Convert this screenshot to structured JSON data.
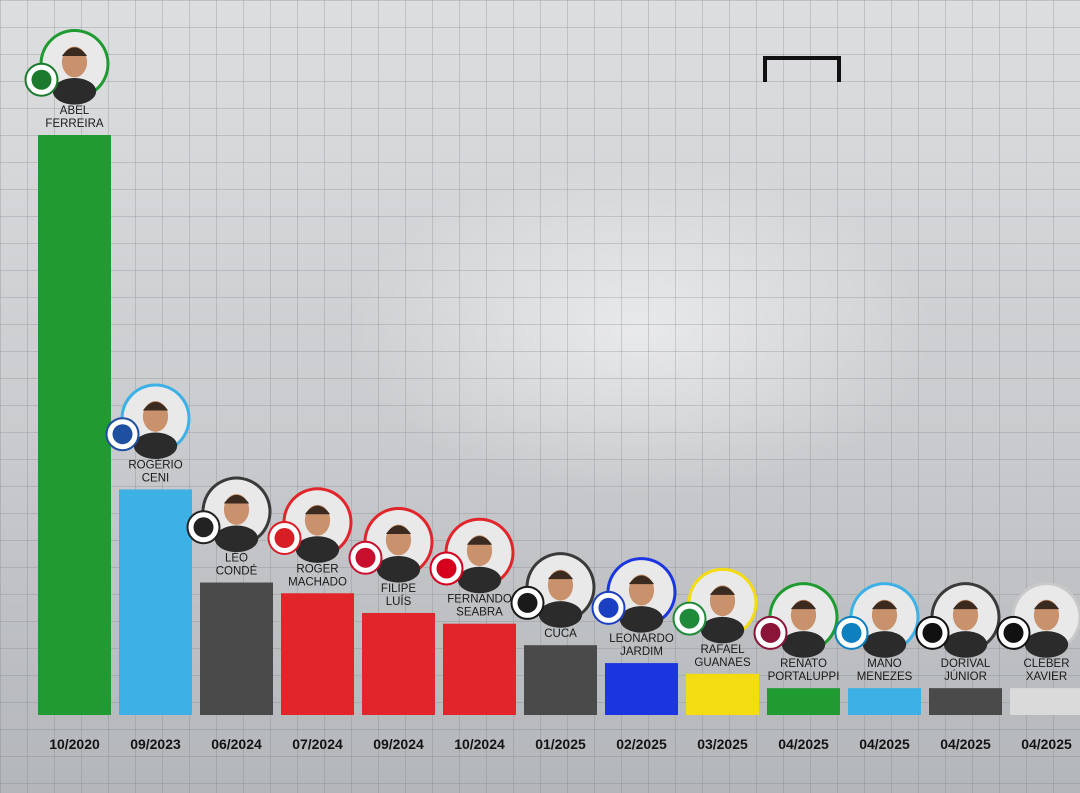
{
  "chart_data": {
    "type": "bar",
    "title": "",
    "xlabel": "",
    "ylabel": "",
    "categories": [
      "10/2020",
      "09/2023",
      "06/2024",
      "07/2024",
      "09/2024",
      "10/2024",
      "01/2025",
      "02/2025",
      "03/2025",
      "04/2025",
      "04/2025",
      "04/2025",
      "04/2025"
    ],
    "values": [
      1620,
      630,
      370,
      340,
      285,
      255,
      195,
      145,
      115,
      75,
      75,
      75,
      75
    ],
    "ylim": [
      0,
      1620
    ],
    "bars": [
      {
        "coach": [
          "ABEL",
          "FERREIRA"
        ],
        "date": "10/2020",
        "color": "#1f9b31",
        "ring": "#1f9b31",
        "crest": "palmeiras-crest-icon",
        "crest_color": "#1b7a2c"
      },
      {
        "coach": [
          "ROGÉRIO",
          "CENI"
        ],
        "date": "09/2023",
        "color": "#3db1e6",
        "ring": "#3db1e6",
        "crest": "bahia-crest-icon",
        "crest_color": "#1f4fa0"
      },
      {
        "coach": [
          "LÉO",
          "CONDÉ"
        ],
        "date": "06/2024",
        "color": "#4a4a4a",
        "ring": "#3a3a3a",
        "crest": "ceara-crest-icon",
        "crest_color": "#222222"
      },
      {
        "coach": [
          "ROGER",
          "MACHADO"
        ],
        "date": "07/2024",
        "color": "#e2252a",
        "ring": "#e2252a",
        "crest": "internacional-crest-icon",
        "crest_color": "#d81e24"
      },
      {
        "coach": [
          "FILIPE",
          "LUÍS"
        ],
        "date": "09/2024",
        "color": "#e2252a",
        "ring": "#e2252a",
        "crest": "flamengo-crest-icon",
        "crest_color": "#c8102e"
      },
      {
        "coach": [
          "FERNANDO",
          "SEABRA"
        ],
        "date": "10/2024",
        "color": "#e2252a",
        "ring": "#e2252a",
        "crest": "red-bull-bragantino-crest-icon",
        "crest_color": "#d6001c"
      },
      {
        "coach": [
          "CUCA"
        ],
        "date": "01/2025",
        "color": "#4a4a4a",
        "ring": "#3a3a3a",
        "crest": "atletico-mineiro-crest-icon",
        "crest_color": "#1a1a1a"
      },
      {
        "coach": [
          "LEONARDO",
          "JARDIM"
        ],
        "date": "02/2025",
        "color": "#1b35e0",
        "ring": "#1b35e0",
        "crest": "cruzeiro-crest-icon",
        "crest_color": "#1a3fc2"
      },
      {
        "coach": [
          "RAFAEL",
          "GUANAES"
        ],
        "date": "03/2025",
        "color": "#f3dc12",
        "ring": "#f3dc12",
        "crest": "mirassol-crest-icon",
        "crest_color": "#1f8a3a"
      },
      {
        "coach": [
          "RENATO",
          "PORTALUPPI"
        ],
        "date": "04/2025",
        "color": "#1f9b31",
        "ring": "#1f9b31",
        "crest": "fluminense-crest-icon",
        "crest_color": "#8a1538"
      },
      {
        "coach": [
          "MANO",
          "MENEZES"
        ],
        "date": "04/2025",
        "color": "#3db1e6",
        "ring": "#3db1e6",
        "crest": "gremio-crest-icon",
        "crest_color": "#0d80bf"
      },
      {
        "coach": [
          "DORIVAL",
          "JÚNIOR"
        ],
        "date": "04/2025",
        "color": "#4a4a4a",
        "ring": "#3a3a3a",
        "crest": "corinthians-crest-icon",
        "crest_color": "#111111"
      },
      {
        "coach": [
          "CLEBER",
          "XAVIER"
        ],
        "date": "04/2025",
        "color": "#dadada",
        "ring": "#c9c9c9",
        "crest": "santos-crest-icon",
        "crest_color": "#111111"
      }
    ]
  },
  "decor": {
    "goal_icon": "goal-frame-icon",
    "label_color": "#141414",
    "skin_tone": "#c9916c"
  }
}
